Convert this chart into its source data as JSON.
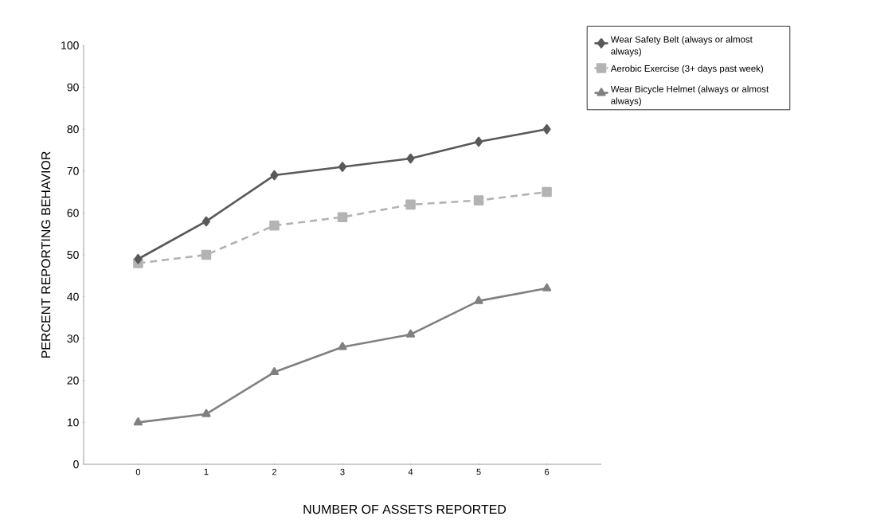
{
  "chart_data": {
    "type": "line",
    "xlabel": "NUMBER OF ASSETS REPORTED",
    "ylabel": "PERCENT REPORTING BEHAVIOR",
    "categories": [
      "0",
      "1",
      "2",
      "3",
      "4",
      "5",
      "6"
    ],
    "ylim": [
      0,
      100
    ],
    "yticks": [
      0,
      10,
      20,
      30,
      40,
      50,
      60,
      70,
      80,
      90,
      100
    ],
    "grid": false,
    "legend": "top right",
    "series": [
      {
        "name": "Wear Safety Belt (always or almost always)",
        "color": "#595959",
        "marker": "diamond",
        "line_style": "solid",
        "values": [
          49,
          58,
          69,
          71,
          73,
          77,
          80
        ]
      },
      {
        "name": "Aerobic Exercise (3+ days past week)",
        "color": "#b3b3b3",
        "marker": "square",
        "line_style": "dashed",
        "values": [
          48,
          50,
          57,
          59,
          62,
          63,
          65
        ]
      },
      {
        "name": "Wear Bicycle Helmet (always or almost always)",
        "color": "#808080",
        "marker": "triangle",
        "line_style": "solid",
        "values": [
          10,
          12,
          22,
          28,
          31,
          39,
          42
        ]
      }
    ]
  }
}
